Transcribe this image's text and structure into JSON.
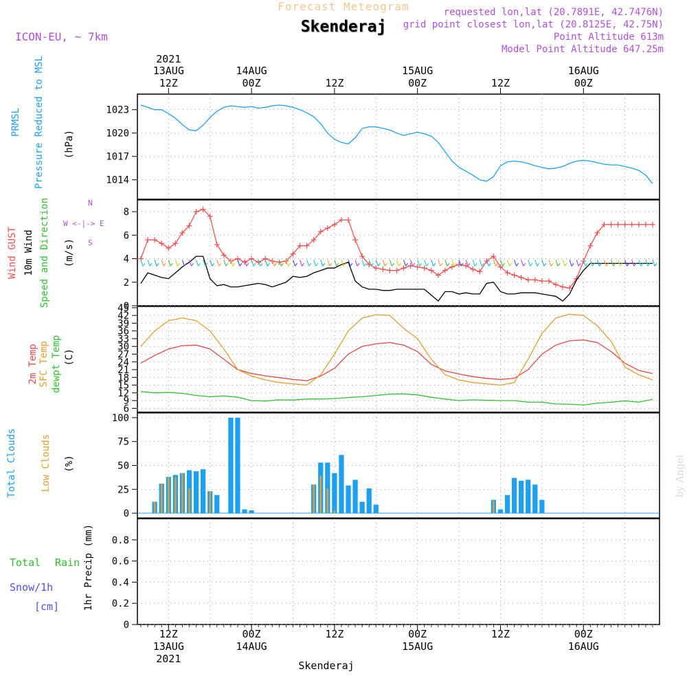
{
  "header": {
    "title": "Forecast Meteogram",
    "location": "Skenderaj",
    "model": "ICON-EU, ~ 7km",
    "requested": "requested lon,lat (20.7891E, 42.7476N)",
    "gridpoint": "grid point closest lon,lat (20.8125E, 42.75N)",
    "point_alt": "Point Altitude 613m",
    "model_alt": "Model Point Altitude 647.25m",
    "watermark": "by Angel",
    "footer_location": "Skenderaj"
  },
  "time_axis": {
    "start": "2021-08-13 00Z",
    "major_ticks": [
      {
        "t": 12,
        "hour": "12Z",
        "day": "13AUG",
        "year": "2021"
      },
      {
        "t": 24,
        "hour": "00Z",
        "day": "14AUG",
        "year": ""
      },
      {
        "t": 36,
        "hour": "12Z",
        "day": "",
        "year": ""
      },
      {
        "t": 48,
        "hour": "00Z",
        "day": "15AUG",
        "year": ""
      },
      {
        "t": 60,
        "hour": "12Z",
        "day": "",
        "year": ""
      },
      {
        "t": 72,
        "hour": "00Z",
        "day": "16AUG",
        "year": ""
      }
    ],
    "bottom_ticks": [
      {
        "t": 12,
        "hour": "12Z",
        "day": "13AUG",
        "year": "2021"
      },
      {
        "t": 24,
        "hour": "00Z",
        "day": "14AUG",
        "year": ""
      },
      {
        "t": 36,
        "hour": "12Z",
        "day": "",
        "year": ""
      },
      {
        "t": 48,
        "hour": "00Z",
        "day": "15AUG",
        "year": ""
      },
      {
        "t": 60,
        "hour": "12Z",
        "day": "",
        "year": ""
      },
      {
        "t": 72,
        "hour": "00Z",
        "day": "16AUG",
        "year": ""
      }
    ],
    "range": [
      7.5,
      83
    ]
  },
  "colors": {
    "pressure": "#1ea0f0",
    "gust": "#f05050",
    "wind": "#000000",
    "temp2m": "#e04848",
    "sfctemp": "#e0a030",
    "dewpt": "#30c030",
    "totalclouds": "#1ea0f0",
    "lowclouds": "#e0a030",
    "rain": "#30c030",
    "snow": "#5050f0",
    "purple": "#b050d8",
    "header": "#f0c890"
  },
  "panels": {
    "pressure": {
      "labels": [
        "PRMSL",
        "Pressure Reduced to MSL",
        "(hPa)"
      ]
    },
    "wind": {
      "labels": [
        "Wind GUST",
        "10m Wind",
        "Speed and Direction",
        "(m/s)"
      ],
      "compass": [
        "N",
        "W <-|-> E",
        "S"
      ]
    },
    "temp": {
      "labels": [
        "2m Temp",
        "SFC Temp",
        "dewpt Temp",
        "(C)"
      ]
    },
    "clouds": {
      "labels": [
        "Total Clouds",
        "Low Clouds",
        "(%)"
      ]
    },
    "precip": {
      "labels": [
        "Total",
        "Rain",
        "Snow/1h",
        "[cm]",
        "1hr Precip (mm)"
      ]
    }
  },
  "chart_data": [
    {
      "type": "line",
      "title": "PRMSL Pressure Reduced to MSL",
      "ylabel": "(hPa)",
      "ylim": [
        1011.5,
        1025
      ],
      "yticks": [
        1014,
        1017,
        1020,
        1023
      ],
      "series": [
        {
          "name": "PRMSL",
          "color": "#1ea0f0",
          "x": [
            8,
            9,
            10,
            11,
            12,
            13,
            14,
            15,
            16,
            17,
            18,
            19,
            20,
            21,
            22,
            23,
            24,
            25,
            26,
            27,
            28,
            29,
            30,
            31,
            32,
            33,
            34,
            35,
            36,
            37,
            38,
            39,
            40,
            41,
            42,
            43,
            44,
            45,
            46,
            47,
            48,
            49,
            50,
            51,
            52,
            53,
            54,
            55,
            56,
            57,
            58,
            59,
            60,
            61,
            62,
            63,
            64,
            65,
            66,
            67,
            68,
            69,
            70,
            71,
            72,
            73,
            74,
            75,
            76,
            77,
            78,
            79,
            80,
            81,
            82
          ],
          "y": [
            1023.6,
            1023.3,
            1023.0,
            1023.0,
            1022.5,
            1021.9,
            1021.1,
            1020.4,
            1020.3,
            1021.0,
            1022.0,
            1022.8,
            1023.3,
            1023.5,
            1023.4,
            1023.3,
            1023.4,
            1023.2,
            1023.3,
            1023.5,
            1023.6,
            1023.5,
            1023.3,
            1023.0,
            1022.6,
            1022.1,
            1021.2,
            1020.0,
            1019.2,
            1018.8,
            1018.6,
            1019.4,
            1020.6,
            1020.8,
            1020.8,
            1020.6,
            1020.4,
            1020.0,
            1019.7,
            1019.9,
            1020.1,
            1019.9,
            1019.6,
            1018.8,
            1017.6,
            1016.4,
            1015.6,
            1015.1,
            1014.6,
            1014.0,
            1013.8,
            1014.4,
            1015.8,
            1016.3,
            1016.4,
            1016.3,
            1016.1,
            1015.8,
            1015.6,
            1015.4,
            1015.5,
            1015.7,
            1016.1,
            1016.4,
            1016.5,
            1016.4,
            1016.2,
            1016.0,
            1015.9,
            1015.9,
            1015.7,
            1015.5,
            1015.2,
            1014.6,
            1013.5
          ]
        }
      ]
    },
    {
      "type": "line",
      "title": "Wind GUST / 10m Wind Speed and Direction",
      "ylabel": "(m/s)",
      "ylim": [
        0,
        9
      ],
      "yticks": [
        0,
        2,
        4,
        6,
        8
      ],
      "series": [
        {
          "name": "Wind GUST",
          "color": "#f05050",
          "x": [
            8,
            9,
            10,
            11,
            12,
            13,
            14,
            15,
            16,
            17,
            18,
            19,
            20,
            21,
            22,
            23,
            24,
            25,
            26,
            27,
            28,
            29,
            30,
            31,
            32,
            33,
            34,
            35,
            36,
            37,
            38,
            39,
            40,
            41,
            42,
            43,
            44,
            45,
            46,
            47,
            48,
            49,
            50,
            51,
            52,
            53,
            54,
            55,
            56,
            57,
            58,
            59,
            60,
            61,
            62,
            63,
            64,
            65,
            66,
            67,
            68,
            69,
            70,
            71,
            72,
            73,
            74,
            75,
            76,
            77,
            78,
            79,
            80,
            81,
            82
          ],
          "y": [
            4.0,
            5.6,
            5.6,
            5.3,
            4.9,
            5.3,
            6.2,
            6.8,
            8.0,
            8.2,
            7.6,
            5.2,
            4.3,
            3.8,
            4.0,
            3.7,
            4.0,
            3.7,
            4.0,
            3.8,
            3.7,
            3.8,
            4.4,
            5.1,
            5.1,
            5.6,
            6.3,
            6.6,
            6.9,
            7.3,
            7.3,
            5.6,
            4.2,
            3.5,
            3.2,
            3.1,
            3.0,
            3.0,
            3.2,
            3.4,
            3.3,
            3.2,
            3.0,
            2.6,
            3.0,
            3.3,
            3.5,
            3.4,
            3.1,
            2.9,
            3.8,
            4.2,
            3.3,
            2.8,
            2.6,
            2.4,
            2.2,
            2.2,
            2.1,
            2.1,
            1.8,
            1.6,
            1.5,
            2.3,
            3.8,
            5.1,
            6.2,
            6.9,
            6.9,
            6.9,
            6.9,
            6.9,
            6.9,
            6.9,
            6.9
          ]
        },
        {
          "name": "10m Wind",
          "color": "#000000",
          "x": [
            8,
            9,
            10,
            11,
            12,
            13,
            14,
            15,
            16,
            17,
            18,
            19,
            20,
            21,
            22,
            23,
            24,
            25,
            26,
            27,
            28,
            29,
            30,
            31,
            32,
            33,
            34,
            35,
            36,
            37,
            38,
            39,
            40,
            41,
            42,
            43,
            44,
            45,
            46,
            47,
            48,
            49,
            50,
            51,
            52,
            53,
            54,
            55,
            56,
            57,
            58,
            59,
            60,
            61,
            62,
            63,
            64,
            65,
            66,
            67,
            68,
            69,
            70,
            71,
            72,
            73,
            74,
            75,
            76,
            77,
            78,
            79,
            80,
            81,
            82
          ],
          "y": [
            1.9,
            2.8,
            2.6,
            2.4,
            2.3,
            2.8,
            3.3,
            3.7,
            4.2,
            4.2,
            2.3,
            1.7,
            1.8,
            1.6,
            1.6,
            1.7,
            1.8,
            1.9,
            1.8,
            1.6,
            1.8,
            2.0,
            2.5,
            2.4,
            2.5,
            2.8,
            3.0,
            3.2,
            3.2,
            3.5,
            3.7,
            2.1,
            1.6,
            1.4,
            1.4,
            1.3,
            1.3,
            1.4,
            1.4,
            1.4,
            1.4,
            1.4,
            0.9,
            0.4,
            1.2,
            1.2,
            1.0,
            1.1,
            1.0,
            1.0,
            1.9,
            2.0,
            1.2,
            1.0,
            1.0,
            1.1,
            1.1,
            1.1,
            1.0,
            0.9,
            0.8,
            0.4,
            1.0,
            2.2,
            3.0,
            3.6,
            3.6,
            3.6,
            3.6,
            3.6,
            3.6,
            3.6,
            3.6,
            3.6,
            3.6
          ]
        }
      ]
    },
    {
      "type": "line",
      "title": "2m Temp / SFC Temp / dewpt Temp",
      "ylabel": "(C)",
      "ylim": [
        4.5,
        45.5
      ],
      "yticks": [
        6,
        9,
        12,
        15,
        18,
        21,
        24,
        27,
        30,
        33,
        36,
        39,
        42,
        45
      ],
      "series": [
        {
          "name": "2m Temp",
          "color": "#e04848",
          "x": [
            8,
            10,
            12,
            14,
            16,
            18,
            20,
            22,
            24,
            26,
            28,
            30,
            32,
            34,
            36,
            38,
            40,
            42,
            44,
            46,
            48,
            50,
            52,
            54,
            56,
            58,
            60,
            62,
            64,
            66,
            68,
            70,
            72,
            74,
            76,
            78,
            80,
            82
          ],
          "y": [
            23.5,
            26.5,
            29.0,
            30.3,
            30.5,
            29.0,
            25.0,
            21.0,
            19.5,
            18.6,
            17.9,
            17.2,
            16.7,
            18.5,
            21.5,
            27.0,
            30.0,
            31.0,
            31.5,
            30.5,
            28.0,
            23.0,
            20.5,
            19.3,
            18.3,
            17.6,
            17.2,
            17.6,
            21.0,
            27.0,
            30.5,
            32.2,
            32.5,
            31.5,
            28.0,
            23.5,
            20.7,
            19.5
          ]
        },
        {
          "name": "SFC Temp",
          "color": "#e0a030",
          "x": [
            8,
            10,
            12,
            14,
            16,
            18,
            20,
            22,
            24,
            26,
            28,
            30,
            32,
            34,
            36,
            38,
            40,
            42,
            44,
            46,
            48,
            50,
            52,
            54,
            56,
            58,
            60,
            62,
            64,
            66,
            68,
            70,
            72,
            74,
            76,
            78,
            80,
            82
          ],
          "y": [
            30.0,
            36.0,
            40.0,
            41.0,
            40.0,
            36.0,
            29.0,
            21.0,
            18.5,
            17.0,
            16.0,
            15.5,
            15.0,
            19.0,
            27.0,
            36.0,
            41.0,
            42.3,
            42.0,
            37.0,
            33.0,
            25.0,
            19.0,
            17.0,
            16.0,
            15.5,
            15.0,
            16.0,
            25.0,
            35.0,
            41.0,
            42.5,
            42.0,
            38.0,
            32.0,
            22.0,
            19.0,
            17.0
          ]
        },
        {
          "name": "dewpt Temp",
          "color": "#30c030",
          "x": [
            8,
            10,
            12,
            14,
            16,
            18,
            20,
            22,
            24,
            26,
            28,
            30,
            32,
            34,
            36,
            38,
            40,
            42,
            44,
            46,
            48,
            50,
            52,
            54,
            56,
            58,
            60,
            62,
            64,
            66,
            68,
            70,
            72,
            74,
            76,
            78,
            80,
            82
          ],
          "y": [
            12.5,
            12.0,
            12.2,
            11.8,
            11.0,
            10.5,
            10.8,
            10.3,
            9.0,
            8.8,
            9.3,
            9.2,
            9.6,
            9.6,
            9.8,
            10.2,
            10.5,
            11.0,
            11.5,
            11.6,
            11.2,
            10.3,
            9.6,
            9.0,
            9.3,
            9.1,
            9.0,
            9.0,
            8.4,
            8.4,
            7.7,
            7.6,
            7.3,
            8.0,
            8.4,
            8.9,
            8.4,
            9.5
          ]
        }
      ]
    },
    {
      "type": "bar",
      "title": "Total Clouds / Low Clouds",
      "ylabel": "(%)",
      "ylim": [
        -5,
        105
      ],
      "yticks": [
        0,
        25,
        50,
        75,
        100
      ],
      "series": [
        {
          "name": "Total Clouds",
          "color": "#1ea0f0",
          "x": [
            10,
            11,
            12,
            13,
            14,
            15,
            16,
            17,
            18,
            19,
            21,
            22,
            23,
            24,
            33,
            34,
            35,
            36,
            37,
            38,
            39,
            40,
            41,
            42,
            59,
            60,
            61,
            62,
            63,
            64,
            65,
            66
          ],
          "values": [
            12,
            31,
            38,
            40,
            42,
            45,
            44,
            46,
            23,
            19,
            100,
            100,
            4,
            3,
            30,
            53,
            53,
            42,
            61,
            29,
            35,
            12,
            26,
            9,
            14,
            4,
            19,
            37,
            34,
            35,
            30,
            14
          ]
        },
        {
          "name": "Low Clouds",
          "color": "#e0a030",
          "x": [
            10,
            11,
            12,
            13,
            14,
            15,
            16,
            17,
            18,
            19,
            21,
            22,
            23,
            24,
            33,
            34,
            35,
            36,
            37,
            38,
            39,
            40,
            41,
            42,
            59,
            60,
            61,
            62,
            63,
            64,
            65,
            66
          ],
          "values": [
            12,
            31,
            38,
            38,
            42,
            26,
            0,
            0,
            23,
            0,
            0,
            0,
            0,
            0,
            30,
            39,
            26,
            3,
            0,
            0,
            0,
            0,
            0,
            0,
            13,
            0,
            0,
            0,
            0,
            0,
            0,
            0
          ]
        }
      ]
    },
    {
      "type": "bar",
      "title": "1hr Precip (mm)",
      "ylabel": "1hr Precip (mm)",
      "ylim": [
        0,
        1.0
      ],
      "yticks": [
        0,
        0.2,
        0.4,
        0.6,
        0.8
      ],
      "series": [
        {
          "name": "Total Rain",
          "color": "#30c030",
          "x": [],
          "values": []
        },
        {
          "name": "Snow/1h [cm]",
          "color": "#5050f0",
          "x": [],
          "values": []
        }
      ]
    }
  ]
}
